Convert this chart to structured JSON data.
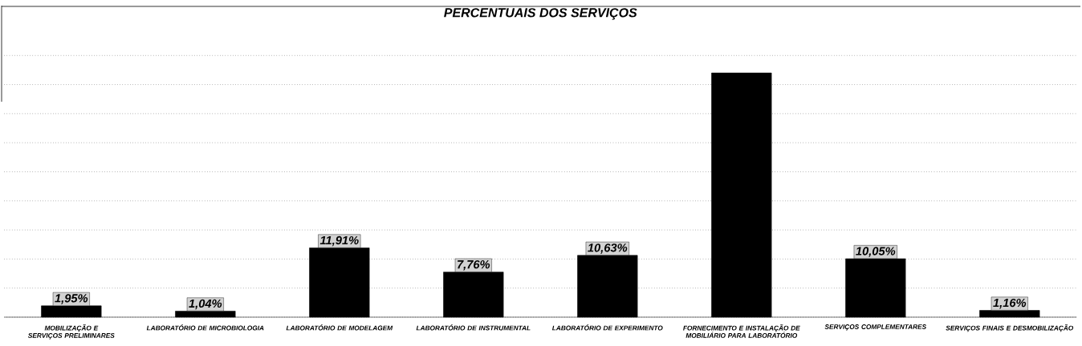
{
  "chart_data": {
    "type": "bar",
    "title": "PERCENTUAIS DOS SERVIÇOS",
    "categories": [
      "MOBILIZAÇÃO E SERVIÇOS PRELIMINARES",
      "LABORATÓRIO DE MICROBIOLOGIA",
      "LABORATÓRIO DE MODELAGEM",
      "LABORATÓRIO DE INSTRUMENTAL",
      "LABORATÓRIO DE EXPERIMENTO",
      "FORNECIMENTO E INSTALAÇÃO DE MOBILIÁRIO PARA LABORATÓRIO",
      "SERVIÇOS COMPLEMENTARES",
      "SERVIÇOS FINAIS E DESMOBILIZAÇÃO"
    ],
    "values": [
      1.95,
      1.04,
      11.91,
      7.76,
      10.63,
      42,
      10.05,
      1.16
    ],
    "value_labels": [
      "1,95%",
      "1,04%",
      "11,91%",
      "7,76%",
      "10,63%",
      null,
      "10,05%",
      "1,16%"
    ],
    "color": "#000000",
    "tick_labels": "x",
    "grid": "y"
  }
}
